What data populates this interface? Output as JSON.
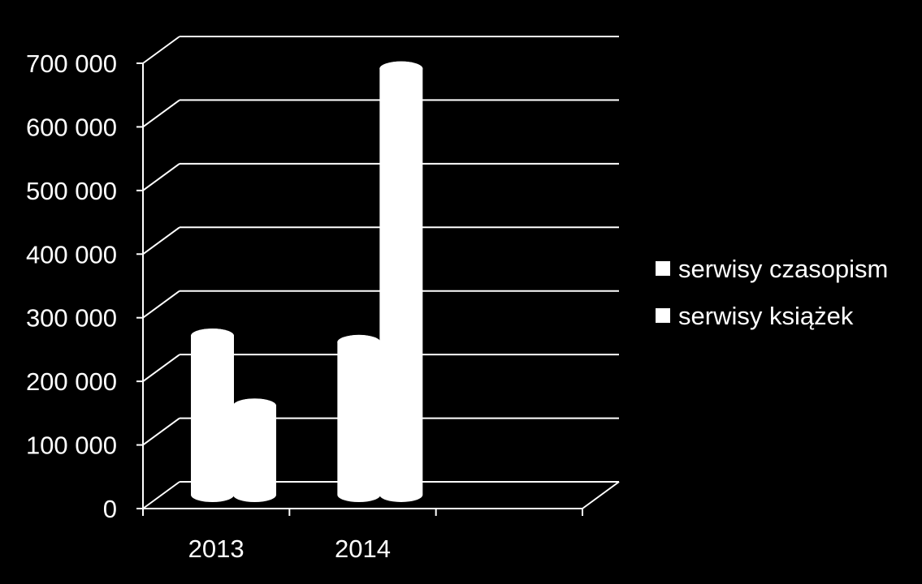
{
  "colors": {
    "background": "#000000",
    "foreground": "#ffffff"
  },
  "chart_data": {
    "type": "bar",
    "style": "3d-cylinder",
    "categories": [
      "2013",
      "2014",
      ""
    ],
    "series": [
      {
        "name": "serwisy czasopism",
        "values": [
          260000,
          250000,
          null
        ]
      },
      {
        "name": "serwisy książek",
        "values": [
          150000,
          680000,
          null
        ]
      }
    ],
    "ylim": [
      0,
      700000
    ],
    "yticks": [
      0,
      100000,
      200000,
      300000,
      400000,
      500000,
      600000,
      700000
    ],
    "ytick_labels": [
      "0",
      "100 000",
      "200 000",
      "300 000",
      "400 000",
      "500 000",
      "600 000",
      "700 000"
    ],
    "grid": true,
    "legend_position": "right"
  }
}
